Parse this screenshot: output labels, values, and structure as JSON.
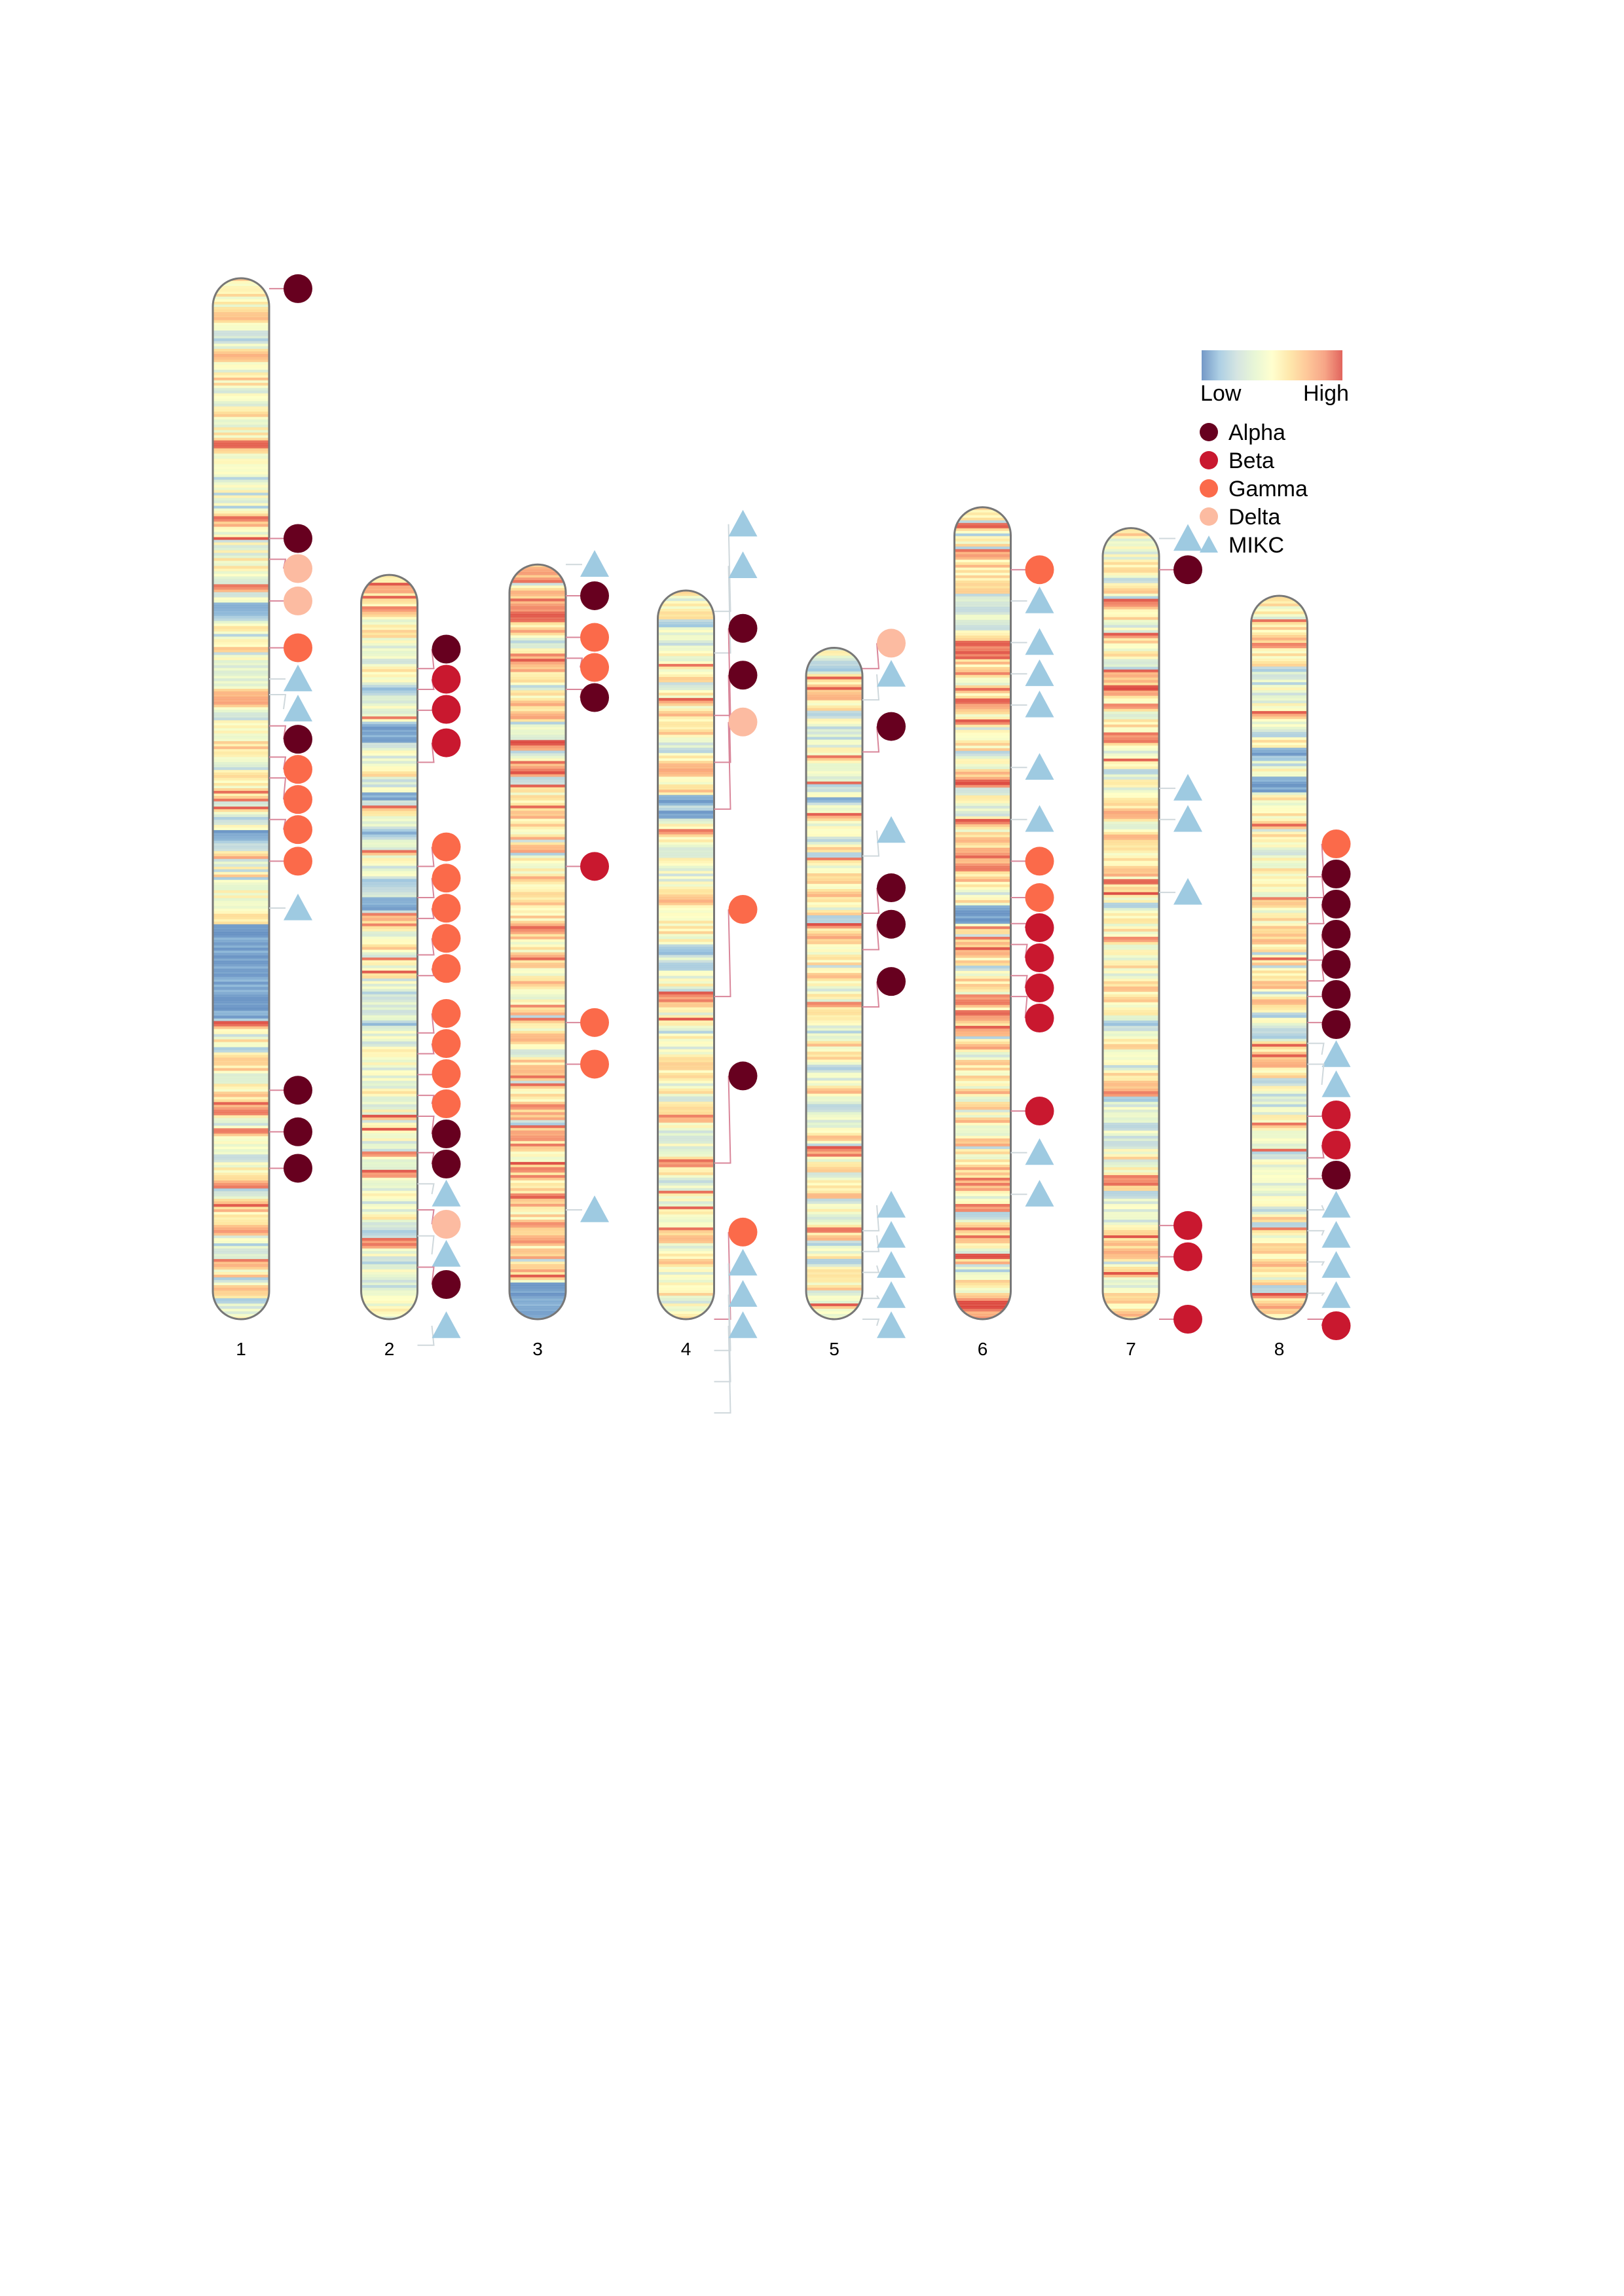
{
  "chart_data": {
    "type": "chromosome_map",
    "title": "",
    "colors": {
      "heat": [
        "#4575b4",
        "#91bfdb",
        "#c7dcd8",
        "#e0f3c8",
        "#ffffbf",
        "#fee090",
        "#fdb577",
        "#f4875f",
        "#d73027"
      ],
      "Alpha": "#67001f",
      "Beta": "#c9182f",
      "Gamma": "#fb6a4a",
      "Delta": "#fcbba1",
      "MIKC": "#9ecae1",
      "outline": "#777777"
    },
    "heat_legend": {
      "low": "Low",
      "high": "High"
    },
    "legend": [
      {
        "name": "Alpha",
        "shape": "circle"
      },
      {
        "name": "Beta",
        "shape": "circle"
      },
      {
        "name": "Gamma",
        "shape": "circle"
      },
      {
        "name": "Delta",
        "shape": "circle"
      },
      {
        "name": "MIKC",
        "shape": "triangle"
      }
    ],
    "chromosomes": [
      {
        "name": "1",
        "length": 1.0,
        "genes": [
          {
            "type": "Alpha",
            "pos": 0.01
          },
          {
            "type": "Alpha",
            "pos": 0.25
          },
          {
            "type": "Delta",
            "pos": 0.27
          },
          {
            "type": "Delta",
            "pos": 0.31
          },
          {
            "type": "Gamma",
            "pos": 0.355
          },
          {
            "type": "MIKC",
            "pos": 0.385
          },
          {
            "type": "MIKC",
            "pos": 0.4
          },
          {
            "type": "Alpha",
            "pos": 0.43
          },
          {
            "type": "Gamma",
            "pos": 0.46
          },
          {
            "type": "Gamma",
            "pos": 0.48
          },
          {
            "type": "Gamma",
            "pos": 0.52
          },
          {
            "type": "Gamma",
            "pos": 0.56
          },
          {
            "type": "MIKC",
            "pos": 0.605
          },
          {
            "type": "Alpha",
            "pos": 0.78
          },
          {
            "type": "Alpha",
            "pos": 0.82
          },
          {
            "type": "Alpha",
            "pos": 0.855
          }
        ],
        "heat": {
          "seed": 11,
          "bias": 0.55,
          "blue_bands": [
            [
              0.62,
              0.71
            ],
            [
              0.31,
              0.32
            ],
            [
              0.53,
              0.54
            ]
          ]
        }
      },
      {
        "name": "2",
        "length": 0.715,
        "genes": [
          {
            "type": "Alpha",
            "pos": 0.09
          },
          {
            "type": "Beta",
            "pos": 0.11
          },
          {
            "type": "Beta",
            "pos": 0.13
          },
          {
            "type": "Beta",
            "pos": 0.18
          },
          {
            "type": "Gamma",
            "pos": 0.28
          },
          {
            "type": "Gamma",
            "pos": 0.31
          },
          {
            "type": "Gamma",
            "pos": 0.33
          },
          {
            "type": "Gamma",
            "pos": 0.365
          },
          {
            "type": "Gamma",
            "pos": 0.385
          },
          {
            "type": "Gamma",
            "pos": 0.44
          },
          {
            "type": "Gamma",
            "pos": 0.46
          },
          {
            "type": "Gamma",
            "pos": 0.48
          },
          {
            "type": "Gamma",
            "pos": 0.5
          },
          {
            "type": "Alpha",
            "pos": 0.52
          },
          {
            "type": "Alpha",
            "pos": 0.555
          },
          {
            "type": "MIKC",
            "pos": 0.585
          },
          {
            "type": "Delta",
            "pos": 0.61
          },
          {
            "type": "MIKC",
            "pos": 0.635
          },
          {
            "type": "Alpha",
            "pos": 0.665
          },
          {
            "type": "MIKC",
            "pos": 0.74
          }
        ],
        "heat": {
          "seed": 23,
          "bias": 0.42,
          "blue_bands": [
            [
              0.2,
              0.22
            ],
            [
              0.29,
              0.3
            ],
            [
              0.43,
              0.45
            ]
          ]
        }
      },
      {
        "name": "3",
        "length": 0.725,
        "genes": [
          {
            "type": "MIKC",
            "pos": 0.0
          },
          {
            "type": "Alpha",
            "pos": 0.03
          },
          {
            "type": "Gamma",
            "pos": 0.07
          },
          {
            "type": "Gamma",
            "pos": 0.09
          },
          {
            "type": "Alpha",
            "pos": 0.12
          },
          {
            "type": "Beta",
            "pos": 0.29
          },
          {
            "type": "Gamma",
            "pos": 0.44
          },
          {
            "type": "Gamma",
            "pos": 0.48
          },
          {
            "type": "MIKC",
            "pos": 0.62
          }
        ],
        "heat": {
          "seed": 37,
          "bias": 0.62,
          "blue_bands": [
            [
              0.95,
              1.0
            ]
          ]
        }
      },
      {
        "name": "4",
        "length": 0.7,
        "genes": [
          {
            "type": "MIKC",
            "pos": 0.02
          },
          {
            "type": "MIKC",
            "pos": 0.06
          },
          {
            "type": "Alpha",
            "pos": 0.12
          },
          {
            "type": "Alpha",
            "pos": 0.165
          },
          {
            "type": "Delta",
            "pos": 0.21
          },
          {
            "type": "Gamma",
            "pos": 0.39
          },
          {
            "type": "Alpha",
            "pos": 0.55
          },
          {
            "type": "Gamma",
            "pos": 0.7
          },
          {
            "type": "MIKC",
            "pos": 0.73
          },
          {
            "type": "MIKC",
            "pos": 0.76
          },
          {
            "type": "MIKC",
            "pos": 0.79
          }
        ],
        "heat": {
          "seed": 41,
          "bias": 0.48,
          "blue_bands": [
            [
              0.28,
              0.29
            ],
            [
              0.3,
              0.31
            ]
          ]
        }
      },
      {
        "name": "5",
        "length": 0.645,
        "genes": [
          {
            "type": "Delta",
            "pos": 0.02
          },
          {
            "type": "MIKC",
            "pos": 0.05
          },
          {
            "type": "Alpha",
            "pos": 0.1
          },
          {
            "type": "MIKC",
            "pos": 0.2
          },
          {
            "type": "Alpha",
            "pos": 0.255
          },
          {
            "type": "Alpha",
            "pos": 0.29
          },
          {
            "type": "Alpha",
            "pos": 0.345
          },
          {
            "type": "MIKC",
            "pos": 0.56
          },
          {
            "type": "MIKC",
            "pos": 0.58
          },
          {
            "type": "MIKC",
            "pos": 0.6
          },
          {
            "type": "MIKC",
            "pos": 0.625
          },
          {
            "type": "MIKC",
            "pos": 0.645
          }
        ],
        "heat": {
          "seed": 53,
          "bias": 0.5,
          "blue_bands": [
            [
              0.22,
              0.23
            ]
          ]
        }
      },
      {
        "name": "6",
        "length": 0.78,
        "genes": [
          {
            "type": "Gamma",
            "pos": 0.06
          },
          {
            "type": "MIKC",
            "pos": 0.09
          },
          {
            "type": "MIKC",
            "pos": 0.13
          },
          {
            "type": "MIKC",
            "pos": 0.16
          },
          {
            "type": "MIKC",
            "pos": 0.19
          },
          {
            "type": "MIKC",
            "pos": 0.25
          },
          {
            "type": "MIKC",
            "pos": 0.3
          },
          {
            "type": "Gamma",
            "pos": 0.34
          },
          {
            "type": "Gamma",
            "pos": 0.375
          },
          {
            "type": "Beta",
            "pos": 0.4
          },
          {
            "type": "Beta",
            "pos": 0.42
          },
          {
            "type": "Beta",
            "pos": 0.45
          },
          {
            "type": "Beta",
            "pos": 0.47
          },
          {
            "type": "Beta",
            "pos": 0.58
          },
          {
            "type": "MIKC",
            "pos": 0.62
          },
          {
            "type": "MIKC",
            "pos": 0.66
          }
        ],
        "heat": {
          "seed": 67,
          "bias": 0.6,
          "blue_bands": [
            [
              0.49,
              0.51
            ]
          ]
        }
      },
      {
        "name": "7",
        "length": 0.76,
        "genes": [
          {
            "type": "MIKC",
            "pos": 0.01
          },
          {
            "type": "Alpha",
            "pos": 0.04
          },
          {
            "type": "MIKC",
            "pos": 0.25
          },
          {
            "type": "MIKC",
            "pos": 0.28
          },
          {
            "type": "MIKC",
            "pos": 0.35
          },
          {
            "type": "Beta",
            "pos": 0.67
          },
          {
            "type": "Beta",
            "pos": 0.7
          },
          {
            "type": "Beta",
            "pos": 0.76
          }
        ],
        "heat": {
          "seed": 79,
          "bias": 0.5,
          "blue_bands": []
        }
      },
      {
        "name": "8",
        "length": 0.695,
        "genes": [
          {
            "type": "Gamma",
            "pos": 0.27
          },
          {
            "type": "Alpha",
            "pos": 0.29
          },
          {
            "type": "Alpha",
            "pos": 0.315
          },
          {
            "type": "Alpha",
            "pos": 0.35
          },
          {
            "type": "Alpha",
            "pos": 0.37
          },
          {
            "type": "Alpha",
            "pos": 0.385
          },
          {
            "type": "Alpha",
            "pos": 0.41
          },
          {
            "type": "MIKC",
            "pos": 0.43
          },
          {
            "type": "MIKC",
            "pos": 0.45
          },
          {
            "type": "Beta",
            "pos": 0.5
          },
          {
            "type": "Beta",
            "pos": 0.54
          },
          {
            "type": "Alpha",
            "pos": 0.56
          },
          {
            "type": "MIKC",
            "pos": 0.59
          },
          {
            "type": "MIKC",
            "pos": 0.61
          },
          {
            "type": "MIKC",
            "pos": 0.64
          },
          {
            "type": "MIKC",
            "pos": 0.67
          },
          {
            "type": "Beta",
            "pos": 0.695
          }
        ],
        "heat": {
          "seed": 97,
          "bias": 0.52,
          "blue_bands": [
            [
              0.25,
              0.27
            ],
            [
              0.21,
              0.22
            ]
          ]
        }
      }
    ]
  }
}
